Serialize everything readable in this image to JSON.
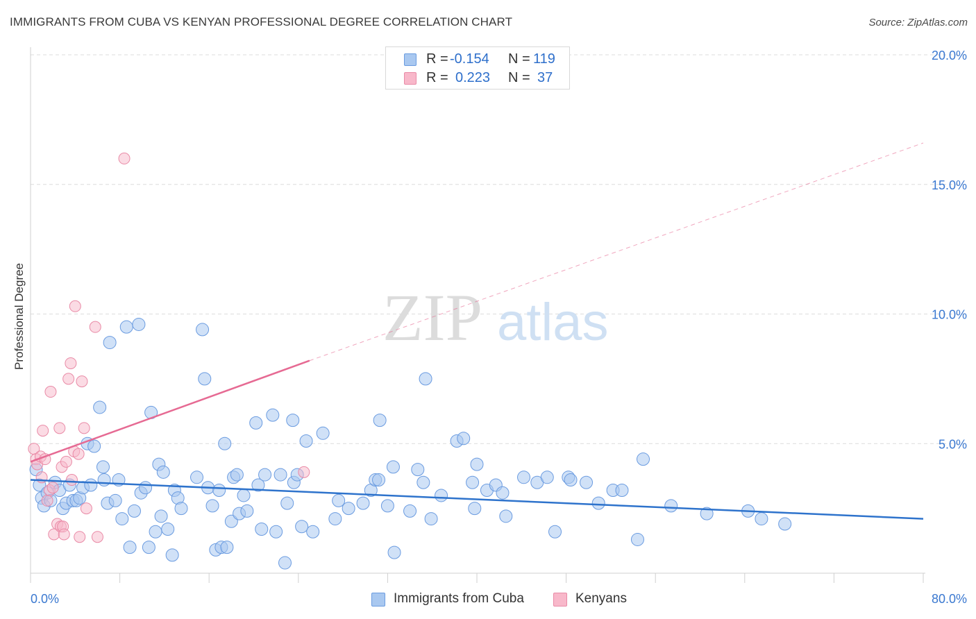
{
  "title": "IMMIGRANTS FROM CUBA VS KENYAN PROFESSIONAL DEGREE CORRELATION CHART",
  "source": "Source: ZipAtlas.com",
  "watermark": {
    "zip": "ZIP",
    "atlas": "atlas"
  },
  "legend": {
    "rows": [
      {
        "r_label": "R =",
        "r_value": "-0.154",
        "n_label": "N =",
        "n_value": "119"
      },
      {
        "r_label": "R =",
        "r_value": "0.223",
        "n_label": "N =",
        "n_value": "37"
      }
    ]
  },
  "bottom_legend": {
    "series1": "Immigrants from Cuba",
    "series2": "Kenyans"
  },
  "colors": {
    "blue_fill": "#a9c8f0",
    "blue_stroke": "#6a9be0",
    "blue_line": "#2e73cc",
    "pink_fill": "#f8b8ca",
    "pink_stroke": "#e98aa6",
    "pink_line": "#e66a93",
    "tick_text": "#3a78d0",
    "grid": "#dcdcdc"
  },
  "chart_data": {
    "type": "scatter",
    "title": "IMMIGRANTS FROM CUBA VS KENYAN PROFESSIONAL DEGREE CORRELATION CHART",
    "xlabel": "",
    "ylabel": "Professional Degree",
    "xlim": [
      0,
      80
    ],
    "ylim": [
      0,
      20
    ],
    "x_tick_labels": [
      "0.0%",
      "80.0%"
    ],
    "y_ticks": [
      5,
      10,
      15,
      20
    ],
    "y_tick_labels": [
      "5.0%",
      "10.0%",
      "15.0%",
      "20.0%"
    ],
    "series": [
      {
        "name": "Immigrants from Cuba",
        "r": -0.154,
        "n": 119,
        "trend": {
          "x0": 0,
          "y0": 3.6,
          "x1": 80,
          "y1": 2.1
        },
        "points": [
          [
            0.5,
            4.0
          ],
          [
            0.8,
            3.4
          ],
          [
            1.0,
            2.9
          ],
          [
            1.2,
            2.6
          ],
          [
            1.5,
            3.1
          ],
          [
            1.8,
            2.8
          ],
          [
            2.2,
            3.5
          ],
          [
            2.6,
            3.2
          ],
          [
            2.9,
            2.5
          ],
          [
            3.2,
            2.7
          ],
          [
            3.5,
            3.4
          ],
          [
            3.8,
            2.8
          ],
          [
            4.1,
            2.8
          ],
          [
            4.4,
            2.9
          ],
          [
            4.7,
            3.3
          ],
          [
            5.1,
            5.0
          ],
          [
            5.4,
            3.4
          ],
          [
            5.7,
            4.9
          ],
          [
            6.2,
            6.4
          ],
          [
            6.5,
            4.1
          ],
          [
            6.6,
            3.6
          ],
          [
            6.9,
            2.7
          ],
          [
            7.1,
            8.9
          ],
          [
            7.6,
            2.8
          ],
          [
            7.9,
            3.6
          ],
          [
            8.2,
            2.1
          ],
          [
            8.6,
            9.5
          ],
          [
            8.9,
            1.0
          ],
          [
            9.3,
            2.4
          ],
          [
            9.7,
            9.6
          ],
          [
            9.9,
            3.1
          ],
          [
            10.3,
            3.3
          ],
          [
            10.6,
            1.0
          ],
          [
            10.8,
            6.2
          ],
          [
            11.2,
            1.6
          ],
          [
            11.5,
            4.2
          ],
          [
            11.7,
            2.2
          ],
          [
            11.9,
            3.9
          ],
          [
            12.3,
            1.7
          ],
          [
            12.7,
            0.7
          ],
          [
            12.9,
            3.2
          ],
          [
            13.2,
            2.9
          ],
          [
            13.5,
            2.5
          ],
          [
            14.9,
            3.7
          ],
          [
            15.4,
            9.4
          ],
          [
            15.6,
            7.5
          ],
          [
            15.9,
            3.3
          ],
          [
            16.3,
            2.6
          ],
          [
            16.6,
            0.9
          ],
          [
            16.9,
            3.2
          ],
          [
            17.1,
            1.0
          ],
          [
            17.4,
            5.0
          ],
          [
            17.6,
            1.0
          ],
          [
            18.0,
            2.0
          ],
          [
            18.2,
            3.7
          ],
          [
            18.5,
            3.8
          ],
          [
            18.7,
            2.3
          ],
          [
            19.1,
            3.0
          ],
          [
            19.4,
            2.4
          ],
          [
            20.2,
            5.8
          ],
          [
            20.4,
            3.4
          ],
          [
            20.7,
            1.7
          ],
          [
            21.0,
            3.8
          ],
          [
            21.7,
            6.1
          ],
          [
            22.0,
            1.6
          ],
          [
            22.4,
            3.8
          ],
          [
            22.8,
            0.4
          ],
          [
            23.0,
            2.7
          ],
          [
            23.5,
            5.9
          ],
          [
            23.6,
            3.5
          ],
          [
            23.9,
            3.8
          ],
          [
            24.3,
            1.8
          ],
          [
            24.7,
            5.1
          ],
          [
            25.3,
            1.6
          ],
          [
            26.2,
            5.4
          ],
          [
            27.3,
            2.1
          ],
          [
            27.6,
            2.8
          ],
          [
            28.5,
            2.5
          ],
          [
            29.8,
            2.7
          ],
          [
            30.5,
            3.2
          ],
          [
            30.9,
            3.6
          ],
          [
            31.2,
            3.6
          ],
          [
            31.3,
            5.9
          ],
          [
            32.0,
            2.6
          ],
          [
            32.5,
            4.1
          ],
          [
            32.6,
            0.8
          ],
          [
            34.0,
            2.4
          ],
          [
            34.7,
            4.0
          ],
          [
            35.2,
            3.5
          ],
          [
            35.4,
            7.5
          ],
          [
            35.9,
            2.1
          ],
          [
            36.8,
            3.0
          ],
          [
            38.2,
            5.1
          ],
          [
            38.8,
            5.2
          ],
          [
            39.6,
            3.5
          ],
          [
            39.8,
            2.5
          ],
          [
            40.0,
            4.2
          ],
          [
            40.9,
            3.2
          ],
          [
            41.7,
            3.4
          ],
          [
            42.3,
            3.1
          ],
          [
            42.6,
            2.2
          ],
          [
            44.2,
            3.7
          ],
          [
            45.4,
            3.5
          ],
          [
            46.3,
            3.7
          ],
          [
            47.0,
            1.6
          ],
          [
            48.2,
            3.7
          ],
          [
            48.4,
            3.6
          ],
          [
            49.8,
            3.5
          ],
          [
            50.9,
            2.7
          ],
          [
            52.2,
            3.2
          ],
          [
            53.0,
            3.2
          ],
          [
            54.4,
            1.3
          ],
          [
            54.9,
            4.4
          ],
          [
            57.4,
            2.6
          ],
          [
            60.6,
            2.3
          ],
          [
            64.3,
            2.4
          ],
          [
            65.5,
            2.1
          ],
          [
            67.6,
            1.9
          ]
        ]
      },
      {
        "name": "Kenyans",
        "r": 0.223,
        "n": 37,
        "trend_solid": {
          "x0": 0,
          "y0": 4.3,
          "x1": 25,
          "y1": 8.2
        },
        "trend_dashed": {
          "x0": 25,
          "y0": 8.2,
          "x1": 80,
          "y1": 16.6
        },
        "points": [
          [
            0.3,
            4.8
          ],
          [
            0.5,
            4.4
          ],
          [
            0.6,
            4.2
          ],
          [
            0.9,
            4.5
          ],
          [
            1.0,
            3.7
          ],
          [
            1.1,
            5.5
          ],
          [
            1.3,
            4.4
          ],
          [
            1.5,
            2.8
          ],
          [
            1.7,
            3.2
          ],
          [
            1.8,
            7.0
          ],
          [
            2.0,
            3.3
          ],
          [
            2.1,
            1.5
          ],
          [
            2.4,
            1.9
          ],
          [
            2.6,
            5.6
          ],
          [
            2.7,
            1.8
          ],
          [
            2.8,
            4.1
          ],
          [
            2.9,
            1.8
          ],
          [
            3.0,
            1.5
          ],
          [
            3.2,
            4.3
          ],
          [
            3.4,
            7.5
          ],
          [
            3.6,
            8.1
          ],
          [
            3.7,
            3.6
          ],
          [
            3.9,
            4.7
          ],
          [
            4.0,
            10.3
          ],
          [
            4.3,
            4.6
          ],
          [
            4.4,
            1.4
          ],
          [
            4.6,
            7.4
          ],
          [
            4.8,
            5.6
          ],
          [
            5.0,
            2.5
          ],
          [
            5.8,
            9.5
          ],
          [
            6.0,
            1.4
          ],
          [
            8.4,
            16.0
          ],
          [
            24.5,
            3.9
          ]
        ]
      }
    ]
  }
}
